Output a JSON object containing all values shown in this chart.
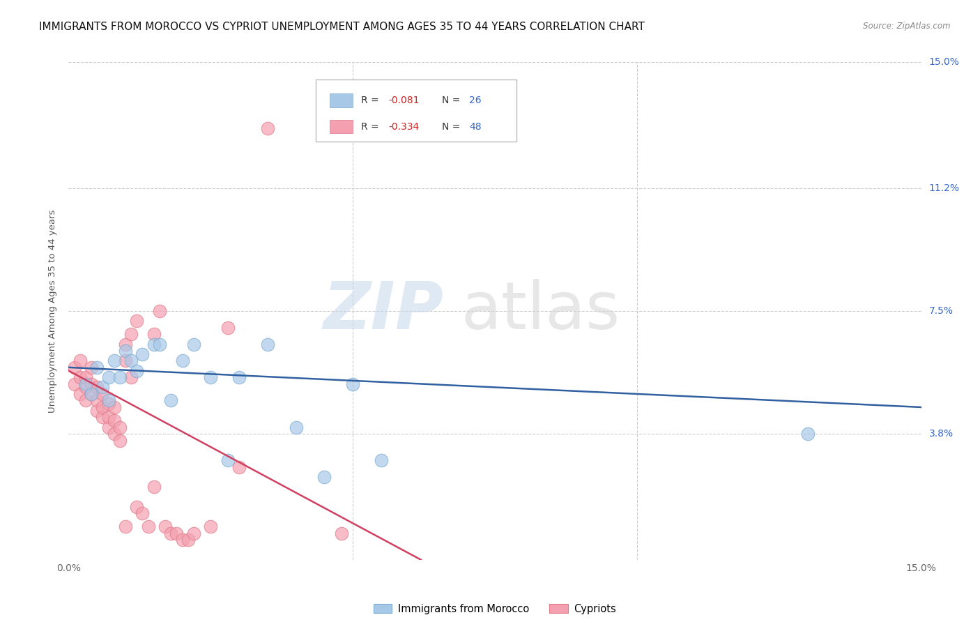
{
  "title": "IMMIGRANTS FROM MOROCCO VS CYPRIOT UNEMPLOYMENT AMONG AGES 35 TO 44 YEARS CORRELATION CHART",
  "source": "Source: ZipAtlas.com",
  "ylabel": "Unemployment Among Ages 35 to 44 years",
  "xlim": [
    0,
    0.15
  ],
  "ylim": [
    0,
    0.15
  ],
  "ytick_values": [
    0.038,
    0.075,
    0.112,
    0.15
  ],
  "ytick_labels": [
    "3.8%",
    "7.5%",
    "11.2%",
    "15.0%"
  ],
  "xtick_positions": [
    0.0,
    0.05,
    0.1,
    0.15
  ],
  "watermark_line1": "ZIP",
  "watermark_line2": "atlas",
  "legend_blue_r": "R = ",
  "legend_blue_r_val": "-0.081",
  "legend_blue_n": "N = ",
  "legend_blue_n_val": "26",
  "legend_pink_r": "R = ",
  "legend_pink_r_val": "-0.334",
  "legend_pink_n": "N = ",
  "legend_pink_n_val": "48",
  "blue_label": "Immigrants from Morocco",
  "pink_label": "Cypriots",
  "blue_color": "#a8c8e8",
  "pink_color": "#f4a0b0",
  "blue_edge_color": "#7aaace",
  "pink_edge_color": "#e07888",
  "trendline_blue_color": "#3060a0",
  "trendline_pink_color": "#d04060",
  "r_val_color": "#cc2222",
  "n_val_color": "#3366cc",
  "blue_scatter_x": [
    0.003,
    0.004,
    0.005,
    0.006,
    0.007,
    0.007,
    0.008,
    0.009,
    0.01,
    0.011,
    0.012,
    0.013,
    0.015,
    0.016,
    0.018,
    0.02,
    0.022,
    0.025,
    0.028,
    0.03,
    0.035,
    0.04,
    0.045,
    0.05,
    0.13,
    0.055
  ],
  "blue_scatter_y": [
    0.053,
    0.05,
    0.058,
    0.052,
    0.048,
    0.055,
    0.06,
    0.055,
    0.063,
    0.06,
    0.057,
    0.062,
    0.065,
    0.065,
    0.048,
    0.06,
    0.065,
    0.055,
    0.03,
    0.055,
    0.065,
    0.04,
    0.025,
    0.053,
    0.038,
    0.03
  ],
  "pink_scatter_x": [
    0.001,
    0.001,
    0.002,
    0.002,
    0.002,
    0.003,
    0.003,
    0.003,
    0.004,
    0.004,
    0.004,
    0.005,
    0.005,
    0.005,
    0.006,
    0.006,
    0.006,
    0.007,
    0.007,
    0.007,
    0.008,
    0.008,
    0.008,
    0.009,
    0.009,
    0.01,
    0.01,
    0.01,
    0.011,
    0.011,
    0.012,
    0.012,
    0.013,
    0.014,
    0.015,
    0.015,
    0.016,
    0.017,
    0.018,
    0.019,
    0.02,
    0.021,
    0.022,
    0.025,
    0.028,
    0.03,
    0.048,
    0.035
  ],
  "pink_scatter_y": [
    0.053,
    0.058,
    0.055,
    0.05,
    0.06,
    0.048,
    0.052,
    0.055,
    0.05,
    0.053,
    0.058,
    0.045,
    0.048,
    0.052,
    0.043,
    0.046,
    0.05,
    0.04,
    0.043,
    0.047,
    0.038,
    0.042,
    0.046,
    0.036,
    0.04,
    0.065,
    0.01,
    0.06,
    0.055,
    0.068,
    0.072,
    0.016,
    0.014,
    0.01,
    0.022,
    0.068,
    0.075,
    0.01,
    0.008,
    0.008,
    0.006,
    0.006,
    0.008,
    0.01,
    0.07,
    0.028,
    0.008,
    0.13
  ],
  "blue_trend_start_x": 0.0,
  "blue_trend_start_y": 0.058,
  "blue_trend_end_x": 0.15,
  "blue_trend_end_y": 0.046,
  "pink_trend_start_x": 0.0,
  "pink_trend_start_y": 0.057,
  "pink_trend_end_x": 0.062,
  "pink_trend_end_y": 0.0,
  "background_color": "#ffffff",
  "grid_color": "#cccccc"
}
